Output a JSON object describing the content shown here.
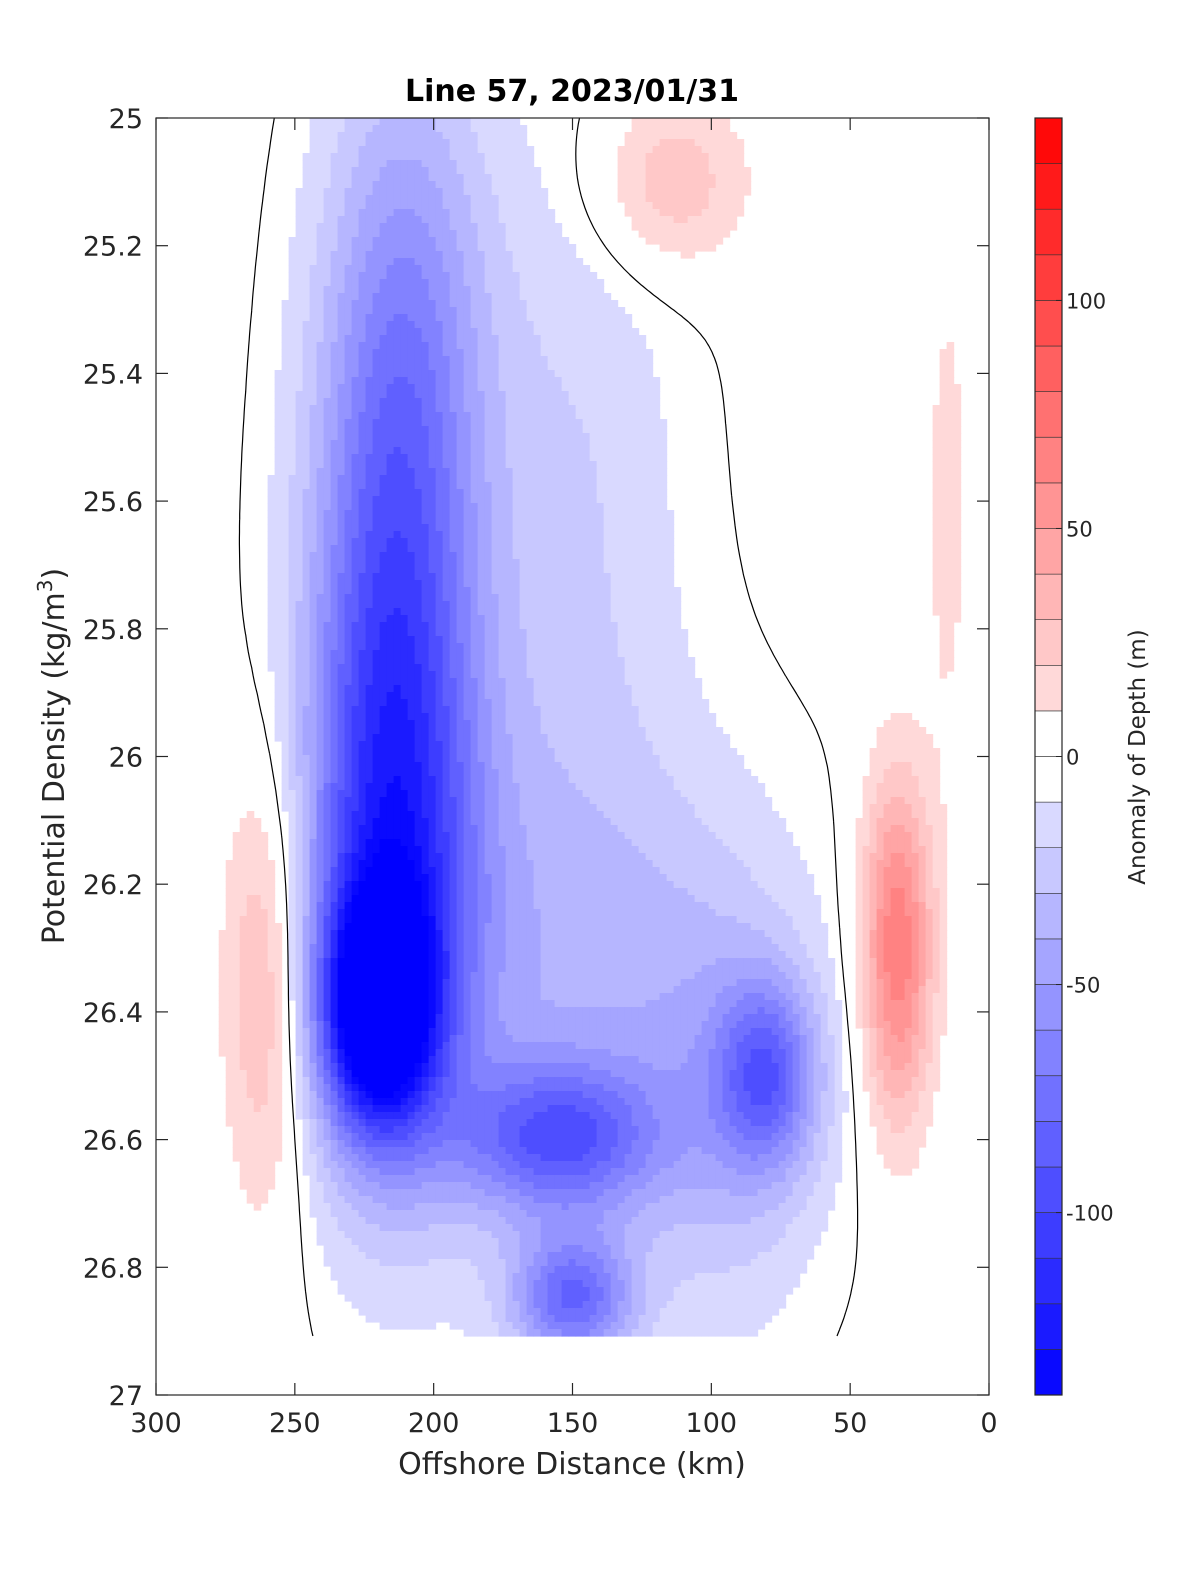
{
  "chart_data": {
    "type": "heatmap",
    "title": "Line 57, 2023/01/31",
    "xlabel": "Offshore Distance (km)",
    "ylabel": "Potential Density (kg/m",
    "ylabel_sup": "3",
    "ylabel_close": ")",
    "xlim": [
      300,
      0
    ],
    "ylim": [
      25,
      27
    ],
    "x_reversed": true,
    "y_reversed": true,
    "xticks": [
      300,
      250,
      200,
      150,
      100,
      50,
      0
    ],
    "xtick_labels": [
      "300",
      "250",
      "200",
      "150",
      "100",
      "50",
      "0"
    ],
    "yticks": [
      25,
      25.2,
      25.4,
      25.6,
      25.8,
      26,
      26.2,
      26.4,
      26.6,
      26.8,
      27
    ],
    "ytick_labels": [
      "25",
      "25.2",
      "25.4",
      "25.6",
      "25.8",
      "26",
      "26.2",
      "26.4",
      "26.6",
      "26.8",
      "27"
    ],
    "grid": false,
    "colorbar": {
      "label": "Anomaly of Depth (m)",
      "range": [
        -140,
        140
      ],
      "step": 10,
      "ticks": [
        -100,
        -50,
        0,
        50,
        100
      ],
      "tick_labels": [
        "-100",
        "-50",
        "0",
        "50",
        "100"
      ],
      "negative_color": "#0000ff",
      "positive_color": "#ff0000",
      "neutral_color": "#ffffff"
    },
    "data_extent": {
      "x": [
        285,
        5
      ],
      "y": [
        25,
        26.9
      ]
    },
    "features": [
      {
        "kind": "negative",
        "peak": -130,
        "center": [
          220,
          26.4
        ],
        "radius": [
          20,
          0.18
        ]
      },
      {
        "kind": "negative",
        "peak": -85,
        "center": [
          215,
          26.2
        ],
        "radius": [
          32,
          0.45
        ]
      },
      {
        "kind": "negative",
        "peak": -60,
        "center": [
          215,
          25.75
        ],
        "radius": [
          30,
          0.5
        ]
      },
      {
        "kind": "negative",
        "peak": -40,
        "center": [
          210,
          25.3
        ],
        "radius": [
          30,
          0.45
        ]
      },
      {
        "kind": "negative",
        "peak": -75,
        "center": [
          155,
          26.6
        ],
        "radius": [
          35,
          0.12
        ]
      },
      {
        "kind": "negative",
        "peak": -75,
        "center": [
          150,
          26.85
        ],
        "radius": [
          22,
          0.1
        ]
      },
      {
        "kind": "negative",
        "peak": -65,
        "center": [
          80,
          26.5
        ],
        "radius": [
          18,
          0.15
        ]
      },
      {
        "kind": "negative",
        "peak": -30,
        "center": [
          150,
          26.35
        ],
        "radius": [
          70,
          0.4
        ]
      },
      {
        "kind": "negative",
        "peak": -20,
        "center": [
          150,
          25.6
        ],
        "radius": [
          40,
          0.6
        ]
      },
      {
        "kind": "negative",
        "peak": -25,
        "center": [
          95,
          26.55
        ],
        "radius": [
          35,
          0.35
        ]
      },
      {
        "kind": "positive",
        "peak": 40,
        "center": [
          260,
          26.35
        ],
        "radius": [
          16,
          0.35
        ]
      },
      {
        "kind": "positive",
        "peak": 70,
        "center": [
          33,
          26.3
        ],
        "radius": [
          13,
          0.27
        ]
      },
      {
        "kind": "positive",
        "peak": 30,
        "center": [
          115,
          25.1
        ],
        "radius": [
          28,
          0.14
        ]
      },
      {
        "kind": "positive",
        "peak": 15,
        "center": [
          15,
          25.6
        ],
        "radius": [
          8,
          0.4
        ]
      }
    ]
  }
}
